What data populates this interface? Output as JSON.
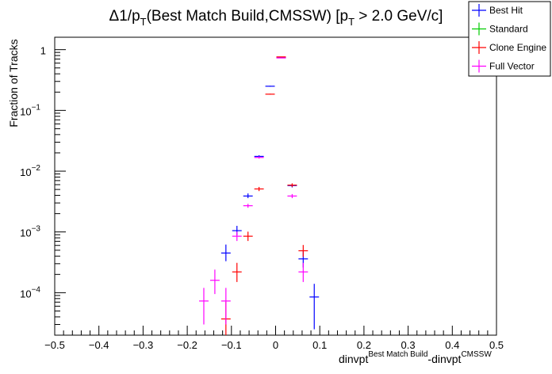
{
  "chart_data": {
    "type": "scatter",
    "title": {
      "prefix": "Δ1/p",
      "sub1": "T",
      "middle": "(Best Match Build,CMSSW) [p",
      "sub2": "T",
      "suffix": " > 2.0 GeV/c]"
    },
    "xlabel": {
      "base1": "dinvpt",
      "sup1": "Best Match Build",
      "base2": "-dinvpt",
      "sup2": "CMSSW"
    },
    "ylabel": "Fraction of Tracks",
    "xlim": [
      -0.5,
      0.5
    ],
    "ylim": [
      2e-05,
      1.6
    ],
    "yscale": "log",
    "grid": false,
    "legend_position": "top-right",
    "x_ticks": [
      "−0.5",
      "−0.4",
      "−0.3",
      "−0.2",
      "−0.1",
      "0",
      "0.1",
      "0.2",
      "0.3",
      "0.4",
      "0.5"
    ],
    "x_tick_values": [
      -0.5,
      -0.4,
      -0.3,
      -0.2,
      -0.1,
      0,
      0.1,
      0.2,
      0.3,
      0.4,
      0.5
    ],
    "y_ticks": [
      {
        "value": 1,
        "base": "1",
        "exp": ""
      },
      {
        "value": 0.1,
        "base": "10",
        "exp": "−1"
      },
      {
        "value": 0.01,
        "base": "10",
        "exp": "−2"
      },
      {
        "value": 0.001,
        "base": "10",
        "exp": "−3"
      },
      {
        "value": 0.0001,
        "base": "10",
        "exp": "−4"
      }
    ],
    "bin_half_width": 0.0125,
    "series": [
      {
        "name": "Best Hit",
        "color": "#0000ff",
        "points": [
          {
            "x": -0.1125,
            "y": 0.00045,
            "lo": 0.00033,
            "hi": 0.00062
          },
          {
            "x": -0.0875,
            "y": 0.00105,
            "lo": 0.00088,
            "hi": 0.00126
          },
          {
            "x": -0.0625,
            "y": 0.0039,
            "lo": 0.0036,
            "hi": 0.0043
          },
          {
            "x": -0.0375,
            "y": 0.0175,
            "lo": 0.0168,
            "hi": 0.0183
          },
          {
            "x": -0.0125,
            "y": 0.25,
            "lo": 0.246,
            "hi": 0.254
          },
          {
            "x": 0.0125,
            "y": 0.74,
            "lo": 0.735,
            "hi": 0.745
          },
          {
            "x": 0.0375,
            "y": 0.0058,
            "lo": 0.0054,
            "hi": 0.0062
          },
          {
            "x": 0.0625,
            "y": 0.00036,
            "lo": 0.00026,
            "hi": 0.00048
          },
          {
            "x": 0.0875,
            "y": 8.5e-05,
            "lo": 2.5e-05,
            "hi": 0.00014
          }
        ]
      },
      {
        "name": "Standard",
        "color": "#00cc00",
        "points": []
      },
      {
        "name": "Clone Engine",
        "color": "#ff0000",
        "points": [
          {
            "x": -0.1125,
            "y": 3.7e-05,
            "lo": 1.5e-05,
            "hi": 7.1e-05
          },
          {
            "x": -0.0875,
            "y": 0.00022,
            "lo": 0.00015,
            "hi": 0.00031
          },
          {
            "x": -0.0625,
            "y": 0.00085,
            "lo": 0.00071,
            "hi": 0.00101
          },
          {
            "x": -0.0375,
            "y": 0.0051,
            "lo": 0.0047,
            "hi": 0.0055
          },
          {
            "x": -0.0125,
            "y": 0.185,
            "lo": 0.182,
            "hi": 0.188
          },
          {
            "x": 0.0125,
            "y": 0.76,
            "lo": 0.755,
            "hi": 0.765
          },
          {
            "x": 0.0375,
            "y": 0.0059,
            "lo": 0.0055,
            "hi": 0.0063
          },
          {
            "x": 0.0625,
            "y": 0.00049,
            "lo": 0.00039,
            "hi": 0.00061
          }
        ]
      },
      {
        "name": "Full Vector",
        "color": "#ff00ff",
        "points": [
          {
            "x": -0.1625,
            "y": 7.3e-05,
            "lo": 3e-05,
            "hi": 0.00012
          },
          {
            "x": -0.1375,
            "y": 0.00016,
            "lo": 9.5e-05,
            "hi": 0.00024
          },
          {
            "x": -0.1125,
            "y": 7.3e-05,
            "lo": 3e-05,
            "hi": 0.00012
          },
          {
            "x": -0.0875,
            "y": 0.00085,
            "lo": 0.00071,
            "hi": 0.00101
          },
          {
            "x": -0.0625,
            "y": 0.0027,
            "lo": 0.0025,
            "hi": 0.0029
          },
          {
            "x": -0.0375,
            "y": 0.0168,
            "lo": 0.0161,
            "hi": 0.0175
          },
          {
            "x": 0.0125,
            "y": 0.73,
            "lo": 0.725,
            "hi": 0.735
          },
          {
            "x": 0.0375,
            "y": 0.0039,
            "lo": 0.0036,
            "hi": 0.0042
          },
          {
            "x": 0.0625,
            "y": 0.00022,
            "lo": 0.00015,
            "hi": 0.00031
          }
        ]
      }
    ]
  }
}
